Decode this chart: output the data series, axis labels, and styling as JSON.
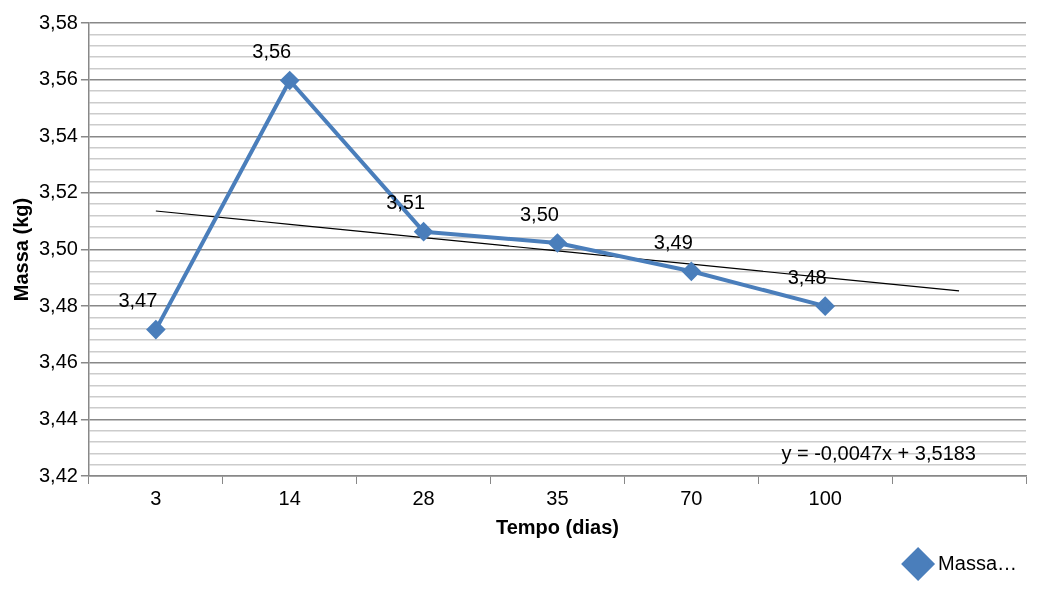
{
  "chart_data": {
    "type": "line",
    "categories": [
      "3",
      "14",
      "28",
      "35",
      "70",
      "100",
      null
    ],
    "xlabel": "Tempo (dias)",
    "ylabel": "Massa (kg)",
    "series": [
      {
        "name": "Massa…",
        "color": "#4a7ebb",
        "values": [
          3.4717,
          3.5597,
          3.5063,
          3.5023,
          3.4923,
          3.48,
          null
        ],
        "value_labels": [
          "3,47",
          "3,56",
          "3,51",
          "3,50",
          "3,49",
          "3,48",
          null
        ],
        "marker": "diamond"
      },
      {
        "type": "line",
        "color": "#000000",
        "values": [
          3.5136,
          3.5089,
          3.5042,
          3.4995,
          3.4948,
          3.4901,
          3.4854
        ],
        "marker": "none"
      }
    ],
    "ylim": [
      3.42,
      3.58
    ],
    "yticks": [
      {
        "value": 3.42,
        "label": "3,42"
      },
      {
        "value": 3.424,
        "label": null
      },
      {
        "value": 3.428,
        "label": null
      },
      {
        "value": 3.432,
        "label": null
      },
      {
        "value": 3.436,
        "label": null
      },
      {
        "value": 3.44,
        "label": "3,44"
      },
      {
        "value": 3.444,
        "label": null
      },
      {
        "value": 3.448,
        "label": null
      },
      {
        "value": 3.452,
        "label": null
      },
      {
        "value": 3.456,
        "label": null
      },
      {
        "value": 3.46,
        "label": "3,46"
      },
      {
        "value": 3.464,
        "label": null
      },
      {
        "value": 3.468,
        "label": null
      },
      {
        "value": 3.472,
        "label": null
      },
      {
        "value": 3.476,
        "label": null
      },
      {
        "value": 3.48,
        "label": "3,48"
      },
      {
        "value": 3.484,
        "label": null
      },
      {
        "value": 3.488,
        "label": null
      },
      {
        "value": 3.492,
        "label": null
      },
      {
        "value": 3.496,
        "label": null
      },
      {
        "value": 3.5,
        "label": "3,50"
      },
      {
        "value": 3.504,
        "label": null
      },
      {
        "value": 3.508,
        "label": null
      },
      {
        "value": 3.512,
        "label": null
      },
      {
        "value": 3.516,
        "label": null
      },
      {
        "value": 3.52,
        "label": "3,52"
      },
      {
        "value": 3.524,
        "label": null
      },
      {
        "value": 3.528,
        "label": null
      },
      {
        "value": 3.532,
        "label": null
      },
      {
        "value": 3.536,
        "label": null
      },
      {
        "value": 3.54,
        "label": "3,54"
      },
      {
        "value": 3.544,
        "label": null
      },
      {
        "value": 3.548,
        "label": null
      },
      {
        "value": 3.552,
        "label": null
      },
      {
        "value": 3.556,
        "label": null
      },
      {
        "value": 3.56,
        "label": "3,56"
      },
      {
        "value": 3.564,
        "label": null
      },
      {
        "value": 3.568,
        "label": null
      },
      {
        "value": 3.572,
        "label": null
      },
      {
        "value": 3.576,
        "label": null
      },
      {
        "value": 3.58,
        "label": "3,58"
      }
    ],
    "grid": "y",
    "legend": "bottom right",
    "annotations": [
      "y = -0,0047x + 3,5183"
    ]
  }
}
